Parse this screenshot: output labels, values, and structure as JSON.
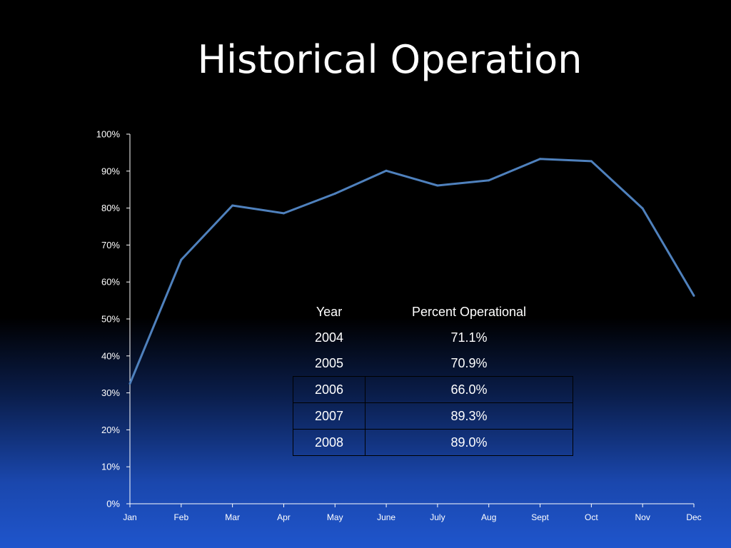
{
  "title": "Historical Operation",
  "chart_data": {
    "type": "line",
    "categories": [
      "Jan",
      "Feb",
      "Mar",
      "Apr",
      "May",
      "June",
      "July",
      "Aug",
      "Sept",
      "Oct",
      "Nov",
      "Dec"
    ],
    "series": [
      {
        "values": [
          32.5,
          66.0,
          80.7,
          78.6,
          83.9,
          90.1,
          86.1,
          87.5,
          93.3,
          92.7,
          79.9,
          56.3
        ]
      }
    ],
    "ylim": [
      0,
      100
    ],
    "yticks": [
      "0%",
      "10%",
      "20%",
      "30%",
      "40%",
      "50%",
      "60%",
      "70%",
      "80%",
      "90%",
      "100%"
    ],
    "line_color": "#4f81bd",
    "grid": false,
    "xlabel": "",
    "ylabel": ""
  },
  "table": {
    "headers": [
      "Year",
      "Percent Operational"
    ],
    "rows": [
      [
        "2004",
        "71.1%"
      ],
      [
        "2005",
        "70.9%"
      ],
      [
        "2006",
        "66.0%"
      ],
      [
        "2007",
        "89.3%"
      ],
      [
        "2008",
        "89.0%"
      ]
    ]
  }
}
